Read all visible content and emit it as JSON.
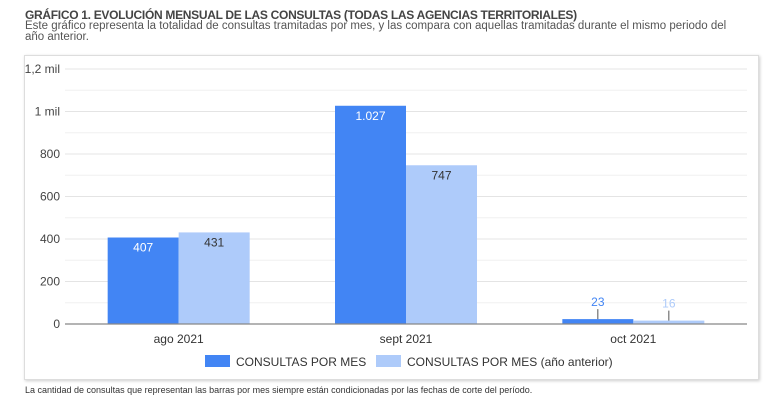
{
  "header": {
    "title": "GRÁFICO 1. EVOLUCIÓN MENSUAL DE LAS CONSULTAS (TODAS LAS AGENCIAS TERRITORIALES)",
    "subtitle": "Este gráfico representa la totalidad de consultas tramitadas por mes, y las compara con aquellas tramitadas durante el mismo periodo del año anterior."
  },
  "footer": "La cantidad de consultas que representan las barras por mes siempre están condicionadas por las fechas de corte del período.",
  "chart_data": {
    "type": "bar",
    "categories": [
      "ago 2021",
      "sept 2021",
      "oct 2021"
    ],
    "series": [
      {
        "name": "CONSULTAS POR MES",
        "values": [
          407,
          1027,
          23
        ],
        "labels": [
          "407",
          "1.027",
          "23"
        ],
        "color": "#4285f4"
      },
      {
        "name": "CONSULTAS POR MES (año anterior)",
        "values": [
          431,
          747,
          16
        ],
        "labels": [
          "431",
          "747",
          "16"
        ],
        "color": "#aecbfa"
      }
    ],
    "ylim": [
      0,
      1200
    ],
    "yticks": [
      0,
      200,
      400,
      600,
      800,
      1000,
      1200
    ],
    "ytick_labels": [
      "0",
      "200",
      "400",
      "600",
      "800",
      "1 mil",
      "1,2 mil"
    ],
    "grid": true,
    "legend": "bottom"
  }
}
